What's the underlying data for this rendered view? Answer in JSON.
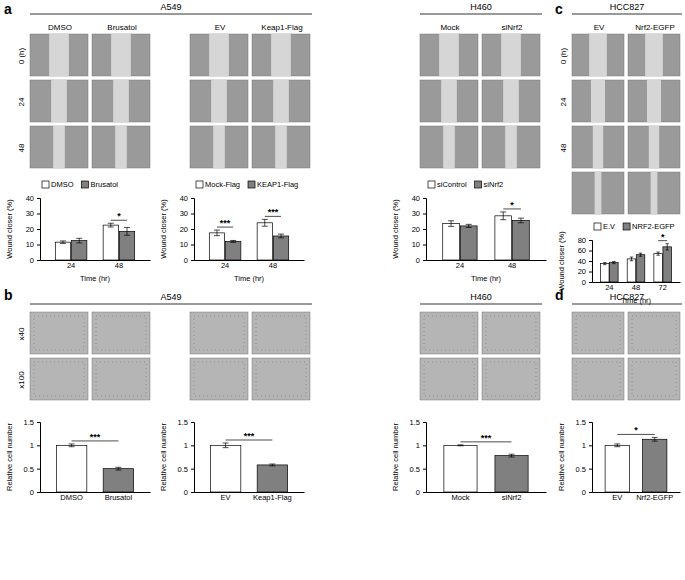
{
  "chart_data": [
    {
      "type": "bar",
      "categories": [
        "24",
        "48"
      ],
      "series": [
        {
          "name": "DMSO",
          "color": "#ffffff",
          "values": [
            11.5,
            22.5
          ],
          "errors": [
            0.8,
            1.2
          ]
        },
        {
          "name": "Brusatol",
          "color": "#808080",
          "values": [
            12.5,
            18.5
          ],
          "errors": [
            1.5,
            2.5
          ]
        }
      ],
      "significance": [
        null,
        "*"
      ],
      "xlabel": "Time (hr)",
      "ylabel": "Wound closer (%)",
      "ylim": [
        0,
        40
      ],
      "yticks": [
        0,
        10,
        20,
        30,
        40
      ],
      "legend": "top"
    },
    {
      "type": "bar",
      "categories": [
        "24",
        "48"
      ],
      "series": [
        {
          "name": "Mock-Flag",
          "color": "#ffffff",
          "values": [
            17.5,
            24
          ],
          "errors": [
            1.8,
            2.2
          ]
        },
        {
          "name": "KEAP1-Flag",
          "color": "#808080",
          "values": [
            12,
            15.5
          ],
          "errors": [
            0.6,
            1.2
          ]
        }
      ],
      "significance": [
        "***",
        "***"
      ],
      "xlabel": "Time (hr)",
      "ylabel": "Wound closer (%)",
      "ylim": [
        0,
        40
      ],
      "yticks": [
        0,
        10,
        20,
        30,
        40
      ],
      "legend": "top"
    },
    {
      "type": "bar",
      "categories": [
        "24",
        "48"
      ],
      "series": [
        {
          "name": "siControl",
          "color": "#ffffff",
          "values": [
            23.5,
            28.5
          ],
          "errors": [
            1.8,
            2.5
          ]
        },
        {
          "name": "siNrf2",
          "color": "#808080",
          "values": [
            22,
            25.5
          ],
          "errors": [
            1.0,
            1.5
          ]
        }
      ],
      "significance": [
        null,
        "*"
      ],
      "xlabel": "Time (hr)",
      "ylabel": "Wound closer (%)",
      "ylim": [
        0,
        40
      ],
      "yticks": [
        0,
        10,
        20,
        30,
        40
      ],
      "legend": "top"
    },
    {
      "type": "bar",
      "categories": [
        "24",
        "48",
        "72"
      ],
      "series": [
        {
          "name": "E.V",
          "color": "#ffffff",
          "values": [
            35,
            44,
            54
          ],
          "errors": [
            2,
            3.5,
            3
          ]
        },
        {
          "name": "NRF2-EGFP",
          "color": "#808080",
          "values": [
            37,
            52,
            67
          ],
          "errors": [
            2,
            3,
            6
          ]
        }
      ],
      "significance": [
        null,
        null,
        "*"
      ],
      "xlabel": "Time (hr)",
      "ylabel": "Wound closer (%)",
      "ylim": [
        0,
        80
      ],
      "yticks": [
        0,
        20,
        40,
        60,
        80
      ],
      "legend": "top"
    },
    {
      "type": "bar",
      "categories": [
        "DMSO",
        "Brusatol"
      ],
      "values": [
        1.0,
        0.5
      ],
      "errors": [
        0.03,
        0.03
      ],
      "colors": [
        "#ffffff",
        "#808080"
      ],
      "significance": "***",
      "ylabel": "Relative cell number",
      "ylim": [
        0,
        1.5
      ],
      "yticks": [
        0,
        0.5,
        1,
        1.5
      ]
    },
    {
      "type": "bar",
      "categories": [
        "EV",
        "Keap1-Flag"
      ],
      "values": [
        1.0,
        0.58
      ],
      "errors": [
        0.05,
        0.02
      ],
      "colors": [
        "#ffffff",
        "#808080"
      ],
      "significance": "***",
      "ylabel": "Relative cell number",
      "ylim": [
        0,
        1.5
      ],
      "yticks": [
        0,
        0.5,
        1,
        1.5
      ]
    },
    {
      "type": "bar",
      "categories": [
        "Mock",
        "siNrf2"
      ],
      "values": [
        1.0,
        0.78
      ],
      "errors": [
        0.01,
        0.03
      ],
      "colors": [
        "#ffffff",
        "#808080"
      ],
      "significance": "***",
      "ylabel": "Relative cell number",
      "ylim": [
        0,
        1.5
      ],
      "yticks": [
        0,
        0.5,
        1,
        1.5
      ]
    },
    {
      "type": "bar",
      "categories": [
        "EV",
        "Nrf2-EGFP"
      ],
      "values": [
        1.0,
        1.13
      ],
      "errors": [
        0.03,
        0.04
      ],
      "colors": [
        "#ffffff",
        "#808080"
      ],
      "significance": "*",
      "ylabel": "Relative cell number",
      "ylim": [
        0,
        1.5
      ],
      "yticks": [
        0,
        0.5,
        1,
        1.5
      ]
    }
  ],
  "figure": {
    "image_panels": [
      {
        "label": "a",
        "sections": [
          {
            "title": "A549",
            "columns": [
              "DMSO",
              "Brusatol",
              "EV",
              "Keap1-Flag"
            ]
          },
          {
            "title": "H460",
            "columns": [
              "Mock",
              "siNrf2"
            ]
          }
        ],
        "rows": [
          "0 (h)",
          "24",
          "48"
        ]
      },
      {
        "label": "b",
        "sections": [
          {
            "title": "A549"
          },
          {
            "title": "H460"
          }
        ],
        "rows": [
          "x40",
          "x100"
        ]
      },
      {
        "label": "c",
        "sections": [
          {
            "title": "HCC827",
            "columns": [
              "EV",
              "Nrf2-EGFP"
            ]
          }
        ],
        "rows": [
          "0 (h)",
          "24",
          "48",
          null
        ]
      },
      {
        "label": "d",
        "sections": [
          {
            "title": "HCC827"
          }
        ]
      }
    ]
  }
}
